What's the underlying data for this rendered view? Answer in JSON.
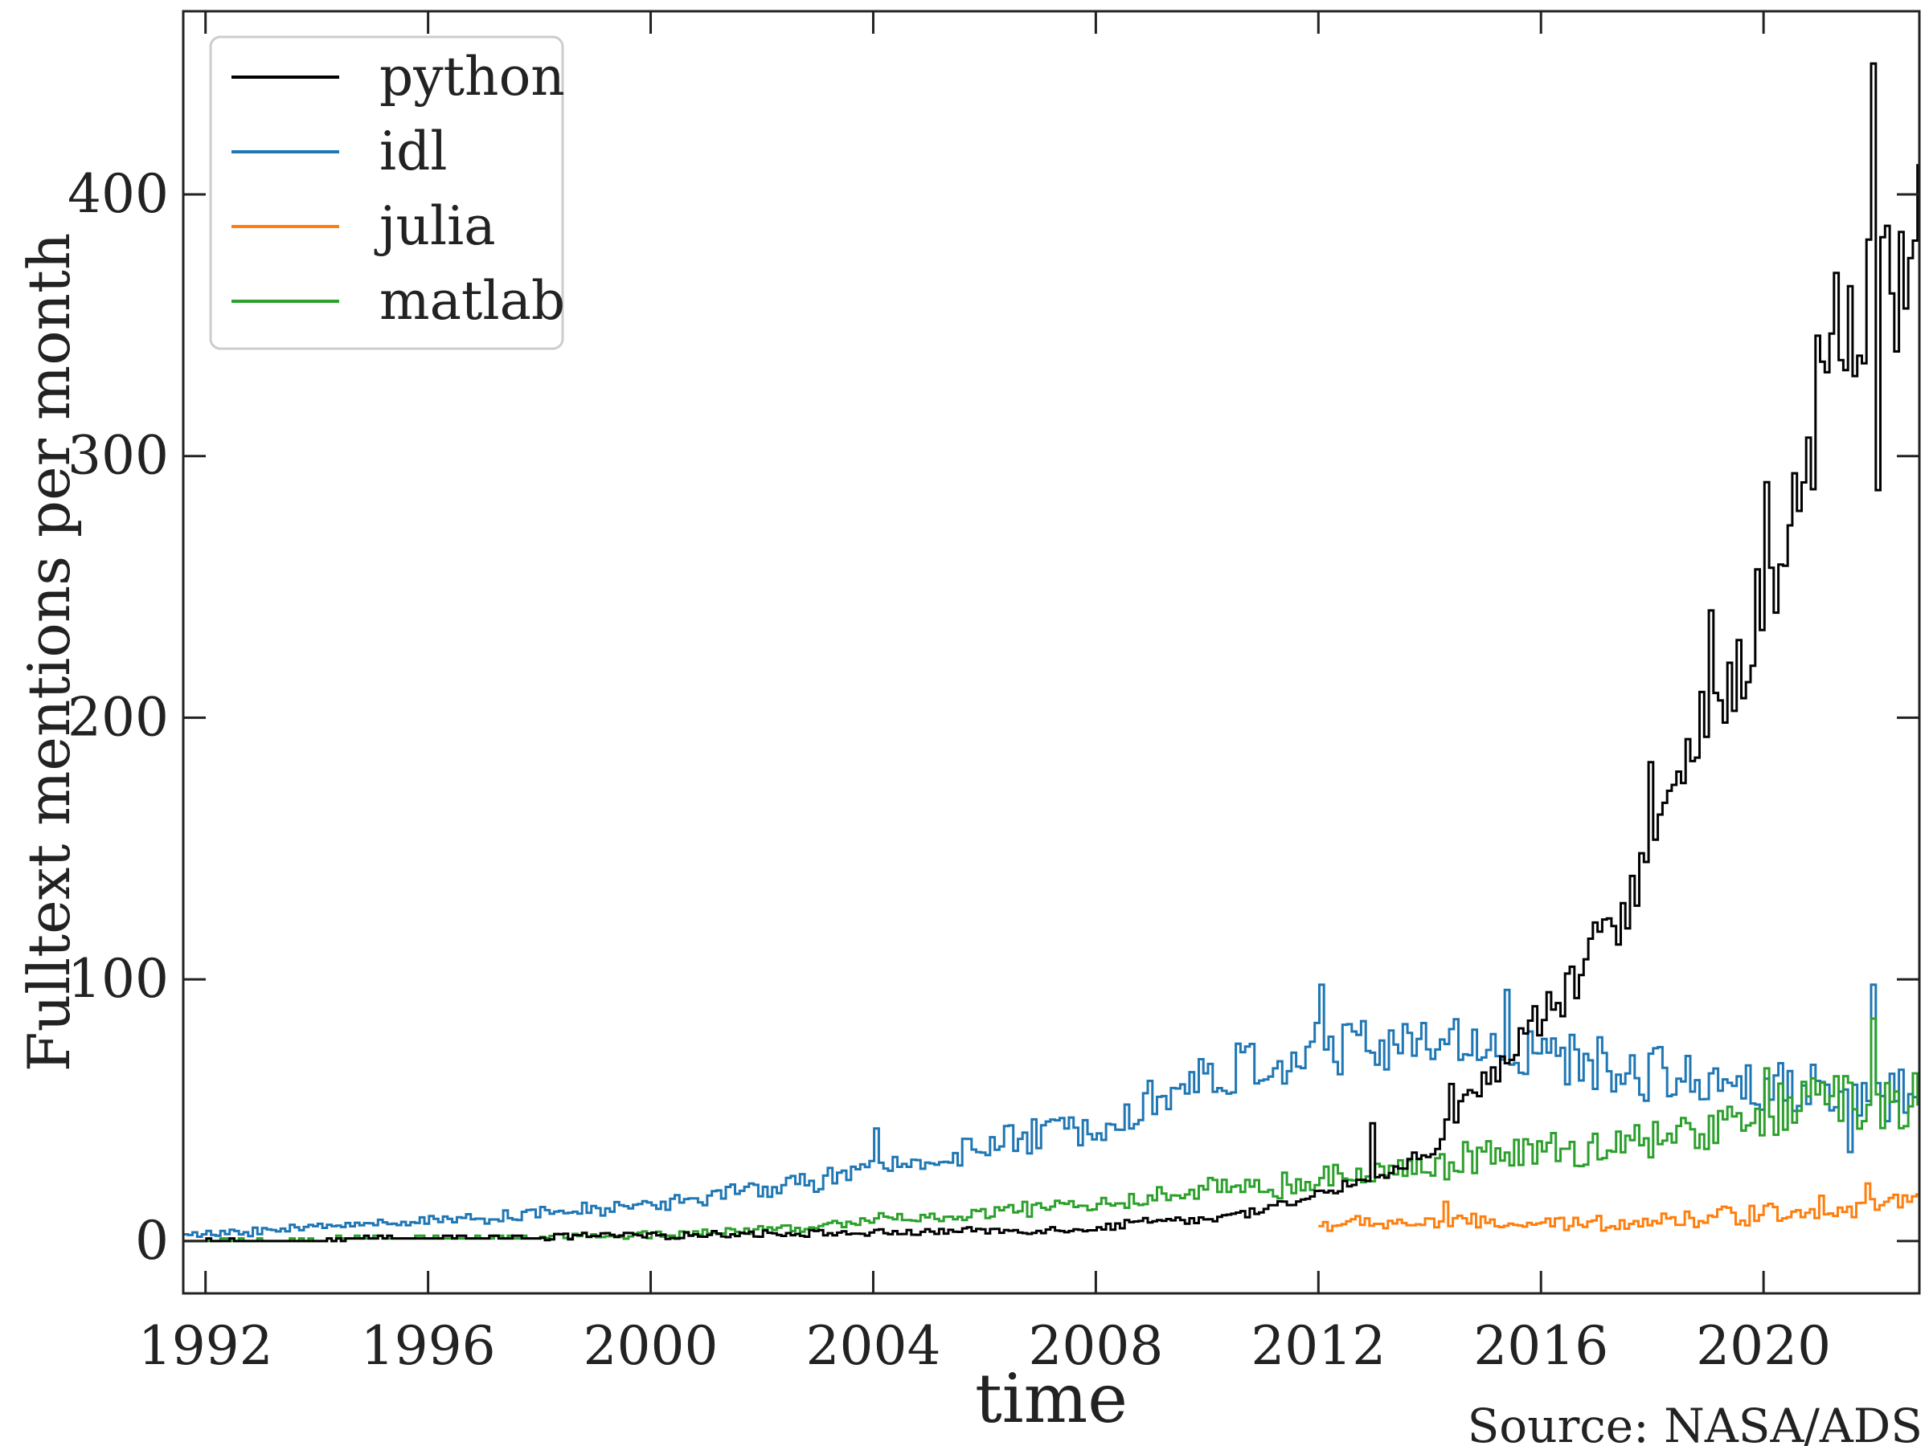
{
  "chart_data": {
    "type": "line",
    "step": true,
    "xlabel": "time",
    "ylabel": "Fulltext mentions per month",
    "source": "Source: NASA/ADS",
    "xlim": [
      1991.6,
      2022.8
    ],
    "ylim": [
      -20,
      470
    ],
    "xticks": [
      "1992",
      "1996",
      "2000",
      "2004",
      "2008",
      "2012",
      "2016",
      "2020"
    ],
    "yticks": [
      "0",
      "100",
      "200",
      "300",
      "400"
    ],
    "grid": false,
    "legend_position": "top-left",
    "series": [
      {
        "name": "python",
        "color": "#000000",
        "start_year": 1991.6,
        "points": [
          [
            1991.6,
            0
          ],
          [
            1994.0,
            0
          ],
          [
            1995.0,
            1
          ],
          [
            1997.0,
            1
          ],
          [
            1999.0,
            2
          ],
          [
            2000.0,
            2
          ],
          [
            2002.0,
            3
          ],
          [
            2004.0,
            3
          ],
          [
            2006.0,
            4
          ],
          [
            2007.0,
            4
          ],
          [
            2008.0,
            5
          ],
          [
            2009.0,
            8
          ],
          [
            2010.0,
            8
          ],
          [
            2011.0,
            12
          ],
          [
            2012.0,
            18
          ],
          [
            2013.0,
            24
          ],
          [
            2014.0,
            35
          ],
          [
            2014.5,
            50
          ],
          [
            2015.0,
            62
          ],
          [
            2015.5,
            75
          ],
          [
            2016.0,
            85
          ],
          [
            2016.5,
            95
          ],
          [
            2017.0,
            115
          ],
          [
            2017.5,
            130
          ],
          [
            2018.0,
            155
          ],
          [
            2018.5,
            175
          ],
          [
            2019.0,
            200
          ],
          [
            2019.5,
            215
          ],
          [
            2020.0,
            250
          ],
          [
            2020.5,
            275
          ],
          [
            2021.0,
            320
          ],
          [
            2021.5,
            345
          ],
          [
            2022.0,
            355
          ],
          [
            2022.5,
            372
          ],
          [
            2022.8,
            395
          ]
        ],
        "spikes": [
          [
            2012.95,
            45
          ],
          [
            2014.35,
            60
          ],
          [
            2017.9,
            183
          ],
          [
            2019.0,
            241
          ],
          [
            2020.0,
            290
          ],
          [
            2020.9,
            346
          ],
          [
            2021.3,
            370
          ],
          [
            2021.92,
            450
          ],
          [
            2022.05,
            287
          ],
          [
            2022.2,
            388
          ]
        ],
        "noise": 0.09
      },
      {
        "name": "idl",
        "color": "#1f77b4",
        "start_year": 1991.6,
        "points": [
          [
            1991.6,
            2
          ],
          [
            1993.0,
            4
          ],
          [
            1995.0,
            7
          ],
          [
            1997.0,
            9
          ],
          [
            1999.0,
            12
          ],
          [
            2000.0,
            14
          ],
          [
            2002.0,
            20
          ],
          [
            2004.0,
            27
          ],
          [
            2006.0,
            36
          ],
          [
            2008.0,
            45
          ],
          [
            2009.0,
            55
          ],
          [
            2010.0,
            62
          ],
          [
            2011.0,
            68
          ],
          [
            2012.0,
            73
          ],
          [
            2013.0,
            75
          ],
          [
            2014.0,
            75
          ],
          [
            2015.0,
            76
          ],
          [
            2016.0,
            70
          ],
          [
            2017.0,
            67
          ],
          [
            2018.0,
            64
          ],
          [
            2019.0,
            62
          ],
          [
            2020.0,
            60
          ],
          [
            2021.0,
            58
          ],
          [
            2022.0,
            55
          ],
          [
            2022.8,
            57
          ]
        ],
        "spikes": [
          [
            2004.0,
            43
          ],
          [
            2012.0,
            98
          ],
          [
            2015.35,
            96
          ],
          [
            2021.9,
            98
          ],
          [
            2021.5,
            34
          ]
        ],
        "noise": 0.16
      },
      {
        "name": "julia",
        "color": "#ff7f0e",
        "start_year": 2012.0,
        "points": [
          [
            2012.0,
            6
          ],
          [
            2013.0,
            7
          ],
          [
            2014.0,
            7
          ],
          [
            2015.0,
            7
          ],
          [
            2016.0,
            6
          ],
          [
            2017.0,
            7
          ],
          [
            2018.0,
            8
          ],
          [
            2019.0,
            9
          ],
          [
            2020.0,
            11
          ],
          [
            2021.0,
            13
          ],
          [
            2022.0,
            15
          ],
          [
            2022.8,
            14
          ]
        ],
        "spikes": [
          [
            2014.25,
            15
          ],
          [
            2021.85,
            22
          ]
        ],
        "noise": 0.35
      },
      {
        "name": "matlab",
        "color": "#2ca02c",
        "start_year": 1991.6,
        "points": [
          [
            1991.6,
            0
          ],
          [
            1997.0,
            1
          ],
          [
            1999.0,
            2
          ],
          [
            2001.0,
            3
          ],
          [
            2002.5,
            5
          ],
          [
            2004.0,
            8
          ],
          [
            2006.0,
            10
          ],
          [
            2007.0,
            13
          ],
          [
            2008.0,
            14
          ],
          [
            2009.0,
            17
          ],
          [
            2010.0,
            20
          ],
          [
            2011.0,
            20
          ],
          [
            2012.0,
            23
          ],
          [
            2013.0,
            26
          ],
          [
            2014.0,
            30
          ],
          [
            2015.0,
            32
          ],
          [
            2016.0,
            34
          ],
          [
            2017.0,
            36
          ],
          [
            2018.0,
            38
          ],
          [
            2019.0,
            42
          ],
          [
            2020.0,
            48
          ],
          [
            2021.0,
            55
          ],
          [
            2022.0,
            50
          ],
          [
            2022.8,
            55
          ]
        ],
        "spikes": [
          [
            2021.95,
            85
          ],
          [
            2020.0,
            66
          ]
        ],
        "noise": 0.2
      }
    ]
  }
}
